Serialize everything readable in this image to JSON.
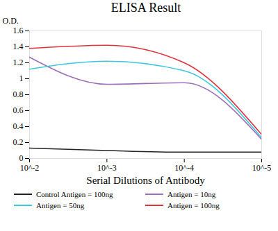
{
  "chart_data": {
    "type": "line",
    "title": "ELISA Result",
    "x_label": "Serial Dilutions of Antibody",
    "y_label": "O.D.",
    "x": [
      0.01,
      0.001,
      0.0001,
      1e-05
    ],
    "series": [
      {
        "name": "Control Antigen = 100ng",
        "color": "#222222",
        "values": [
          0.13,
          0.1,
          0.08,
          0.08
        ]
      },
      {
        "name": "Antigen = 10ng",
        "color": "#9b6fb5",
        "values": [
          1.27,
          0.93,
          0.95,
          0.24
        ]
      },
      {
        "name": "Antigen = 50ng",
        "color": "#3ec6e0",
        "values": [
          1.12,
          1.22,
          1.1,
          0.26
        ]
      },
      {
        "name": "Antigen = 100ng",
        "color": "#e0323c",
        "values": [
          1.38,
          1.42,
          1.2,
          0.3
        ]
      }
    ],
    "xlim": [
      0.01,
      1e-05
    ],
    "xticks": [
      {
        "value": 0.01,
        "label": "10^-2"
      },
      {
        "value": 0.001,
        "label": "10^-3"
      },
      {
        "value": 0.0001,
        "label": "10^-4"
      },
      {
        "value": 1e-05,
        "label": "10^-5"
      }
    ],
    "ylim": [
      0,
      1.6
    ],
    "yticks": [
      0,
      0.2,
      0.4,
      0.6,
      0.8,
      1,
      1.2,
      1.4,
      1.6
    ],
    "log": "x",
    "grid": false,
    "legend": "bottom"
  }
}
